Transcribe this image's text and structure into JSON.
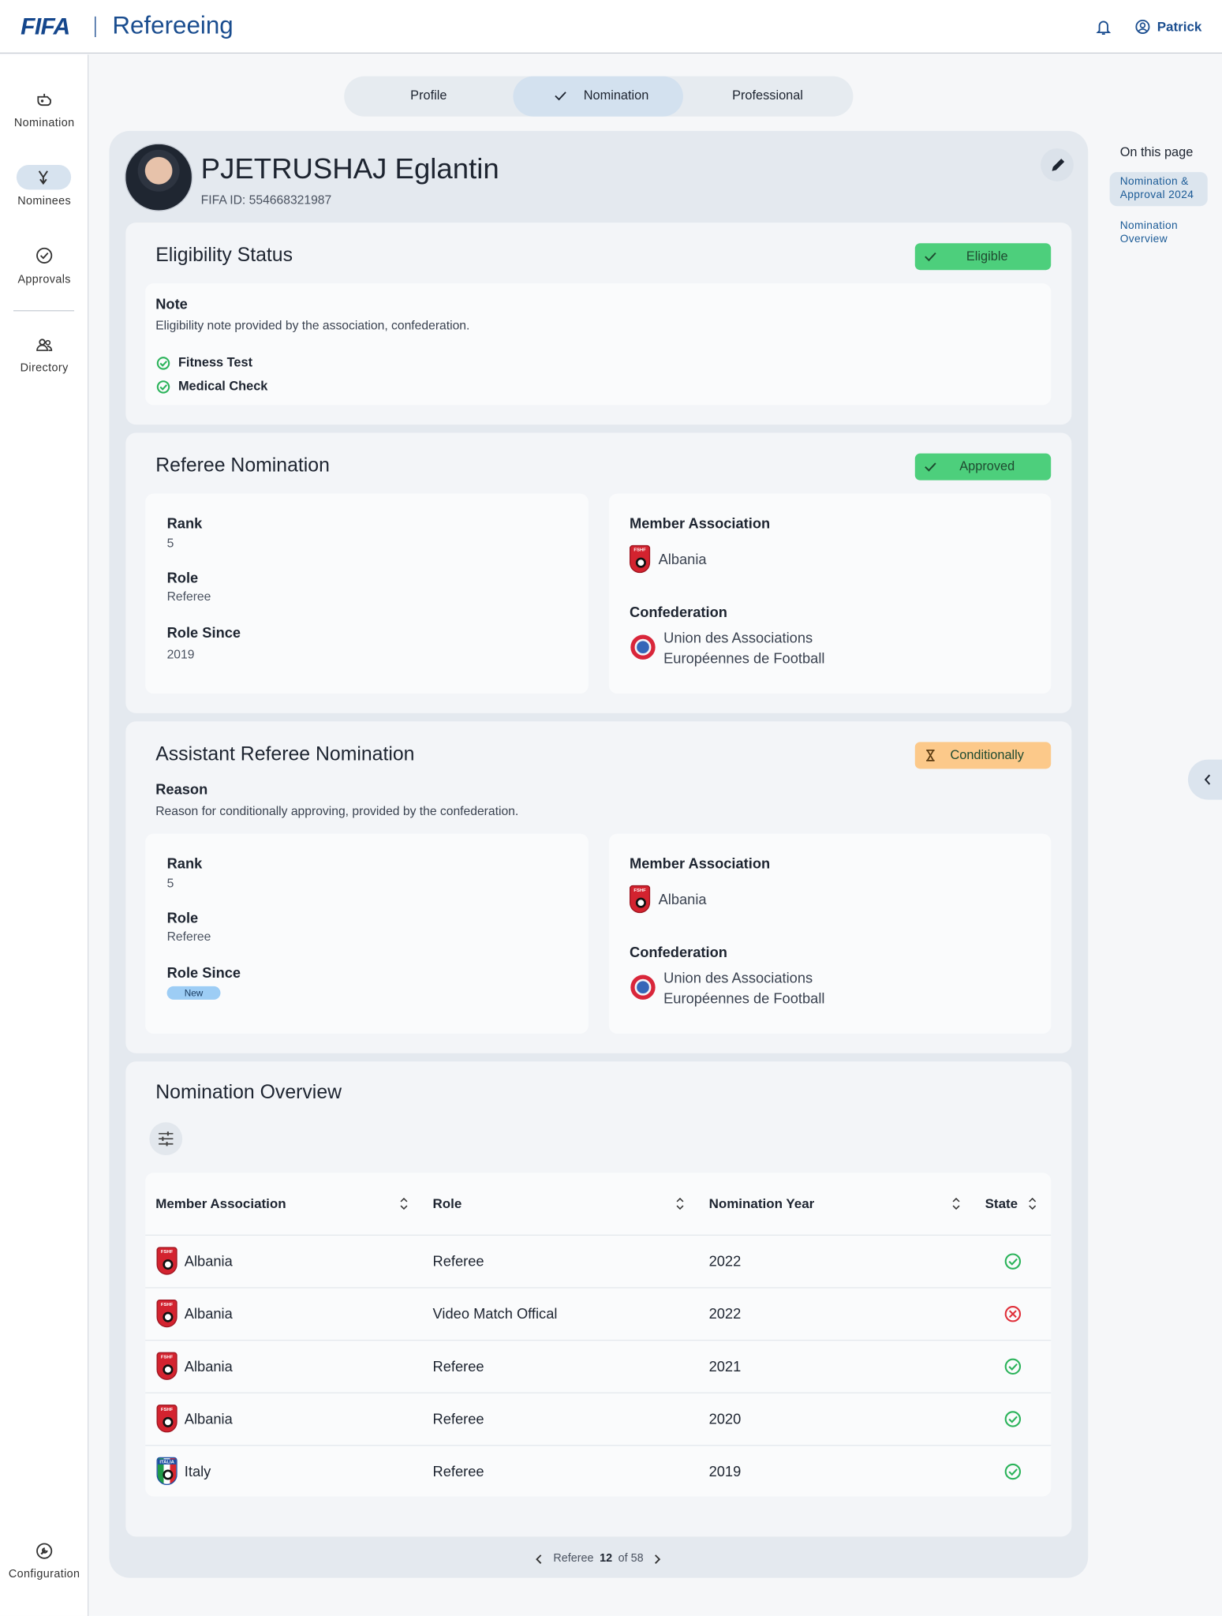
{
  "header": {
    "brand": "FIFA",
    "app": "Refereeing",
    "user": "Patrick"
  },
  "sidebar": {
    "items": [
      "Nomination",
      "Nominees",
      "Approvals",
      "Directory"
    ],
    "footer": "Configuration"
  },
  "tabs": [
    "Profile",
    "Nomination",
    "Professional"
  ],
  "profile": {
    "name": "PJETRUSHAJ Eglantin",
    "fifa_id": "FIFA ID: 554668321987"
  },
  "eligibility": {
    "title": "Eligibility Status",
    "status": "Eligible",
    "note_title": "Note",
    "note": "Eligibility note provided by the association, confederation.",
    "checks": [
      "Fitness Test",
      "Medical Check"
    ]
  },
  "referee_nomination": {
    "title": "Referee Nomination",
    "status": "Approved",
    "rank_label": "Rank",
    "rank": 5,
    "role_label": "Role",
    "role": "Referee",
    "role_since_label": "Role Since",
    "role_since": 2019,
    "member_association_label": "Member Association",
    "member_association": "Albania",
    "member_association_logo": "FSHF",
    "confederation_label": "Confederation",
    "confederation": [
      "Union des Associations",
      "Européennes de Football"
    ]
  },
  "assistant_referee_nomination": {
    "title": "Assistant Referee Nomination",
    "status": "Conditionally",
    "reason_label": "Reason",
    "reason": "Reason for conditionally approving, provided by the confederation.",
    "rank_label": "Rank",
    "rank": 5,
    "role_label": "Role",
    "role": "Referee",
    "role_since_label": "Role Since",
    "role_since_badge": "New",
    "member_association_label": "Member Association",
    "member_association": "Albania",
    "member_association_logo": "FSHF",
    "confederation_label": "Confederation",
    "confederation": [
      "Union des Associations",
      "Européennes de Football"
    ]
  },
  "nomination_overview": {
    "title": "Nomination Overview",
    "columns": [
      "Member Association",
      "Role",
      "Nomination Year",
      "State"
    ],
    "rows": [
      {
        "logo": "FSHF",
        "member_association": "Albania",
        "role": "Referee",
        "year": 2022,
        "approved": true
      },
      {
        "logo": "FSHF",
        "member_association": "Albania",
        "role": "Video Match Offical",
        "year": 2022,
        "approved": false
      },
      {
        "logo": "FSHF",
        "member_association": "Albania",
        "role": "Referee",
        "year": 2021,
        "approved": true
      },
      {
        "logo": "FSHF",
        "member_association": "Albania",
        "role": "Referee",
        "year": 2020,
        "approved": true
      },
      {
        "logo": "ITALIA",
        "member_association": "Italy",
        "role": "Referee",
        "year": 2019,
        "approved": true
      }
    ]
  },
  "pagination": {
    "label": "Referee",
    "current": 12,
    "of": "of 58"
  },
  "on_this_page": {
    "title": "On this page",
    "items": [
      "Nomination & Approval 2024",
      "Nomination Overview"
    ]
  }
}
